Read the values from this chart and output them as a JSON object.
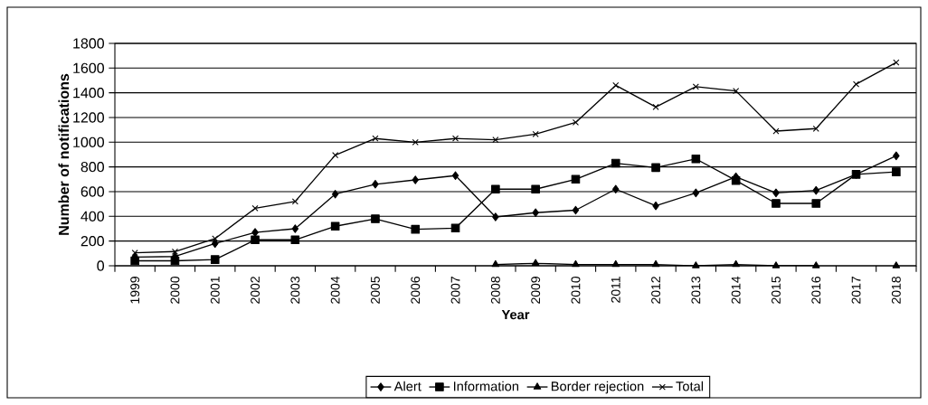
{
  "chart_data": {
    "type": "line",
    "xlabel": "Year",
    "ylabel": "Number of notifications",
    "categories": [
      "1999",
      "2000",
      "2001",
      "2002",
      "2003",
      "2004",
      "2005",
      "2006",
      "2007",
      "2008",
      "2009",
      "2010",
      "2011",
      "2012",
      "2013",
      "2014",
      "2015",
      "2016",
      "2017",
      "2018"
    ],
    "series": [
      {
        "name": "Alert",
        "color": "#000000",
        "marker": "diamond",
        "values": [
          70,
          75,
          180,
          270,
          300,
          580,
          660,
          695,
          730,
          395,
          430,
          450,
          620,
          485,
          590,
          720,
          590,
          610,
          740,
          890
        ]
      },
      {
        "name": "Information",
        "color": "#000000",
        "marker": "square",
        "values": [
          40,
          40,
          50,
          210,
          210,
          320,
          380,
          295,
          305,
          620,
          620,
          700,
          830,
          795,
          865,
          690,
          505,
          505,
          740,
          760
        ]
      },
      {
        "name": "Border rejection",
        "color": "#000000",
        "marker": "triangle",
        "values": [
          null,
          null,
          null,
          null,
          null,
          null,
          null,
          null,
          null,
          10,
          20,
          10,
          10,
          10,
          0,
          10,
          0,
          0,
          null,
          0
        ]
      },
      {
        "name": "Total",
        "color": "#000000",
        "marker": "cross",
        "values": [
          105,
          115,
          220,
          465,
          520,
          895,
          1030,
          1000,
          1030,
          1020,
          1065,
          1160,
          1460,
          1285,
          1450,
          1415,
          1090,
          1110,
          1470,
          1645
        ]
      }
    ],
    "ylim": [
      0,
      1800
    ],
    "yticks": [
      0,
      200,
      400,
      600,
      800,
      1000,
      1200,
      1400,
      1600,
      1800
    ],
    "grid": "y",
    "legend": "bottom",
    "line_style": "solid"
  }
}
